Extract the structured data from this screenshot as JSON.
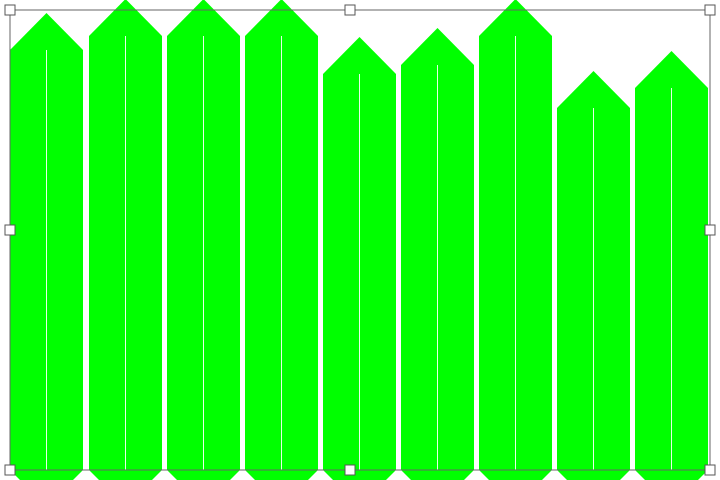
{
  "canvas": {
    "background": "#ffffff",
    "selection_frame_color": "#666666",
    "handle_fill": "#ffffff",
    "handle_stroke": "#555555"
  },
  "shapes": {
    "kind": "pencil-shape",
    "fill": "#00ff00",
    "center_line_color": "#e6ffe6",
    "count": 9
  },
  "selection": {
    "handle_icons": [
      "resize-handle-top-left",
      "resize-handle-top-center",
      "resize-handle-top-right",
      "resize-handle-middle-left",
      "resize-handle-middle-right",
      "resize-handle-bottom-left",
      "resize-handle-bottom-center",
      "resize-handle-bottom-right"
    ]
  }
}
